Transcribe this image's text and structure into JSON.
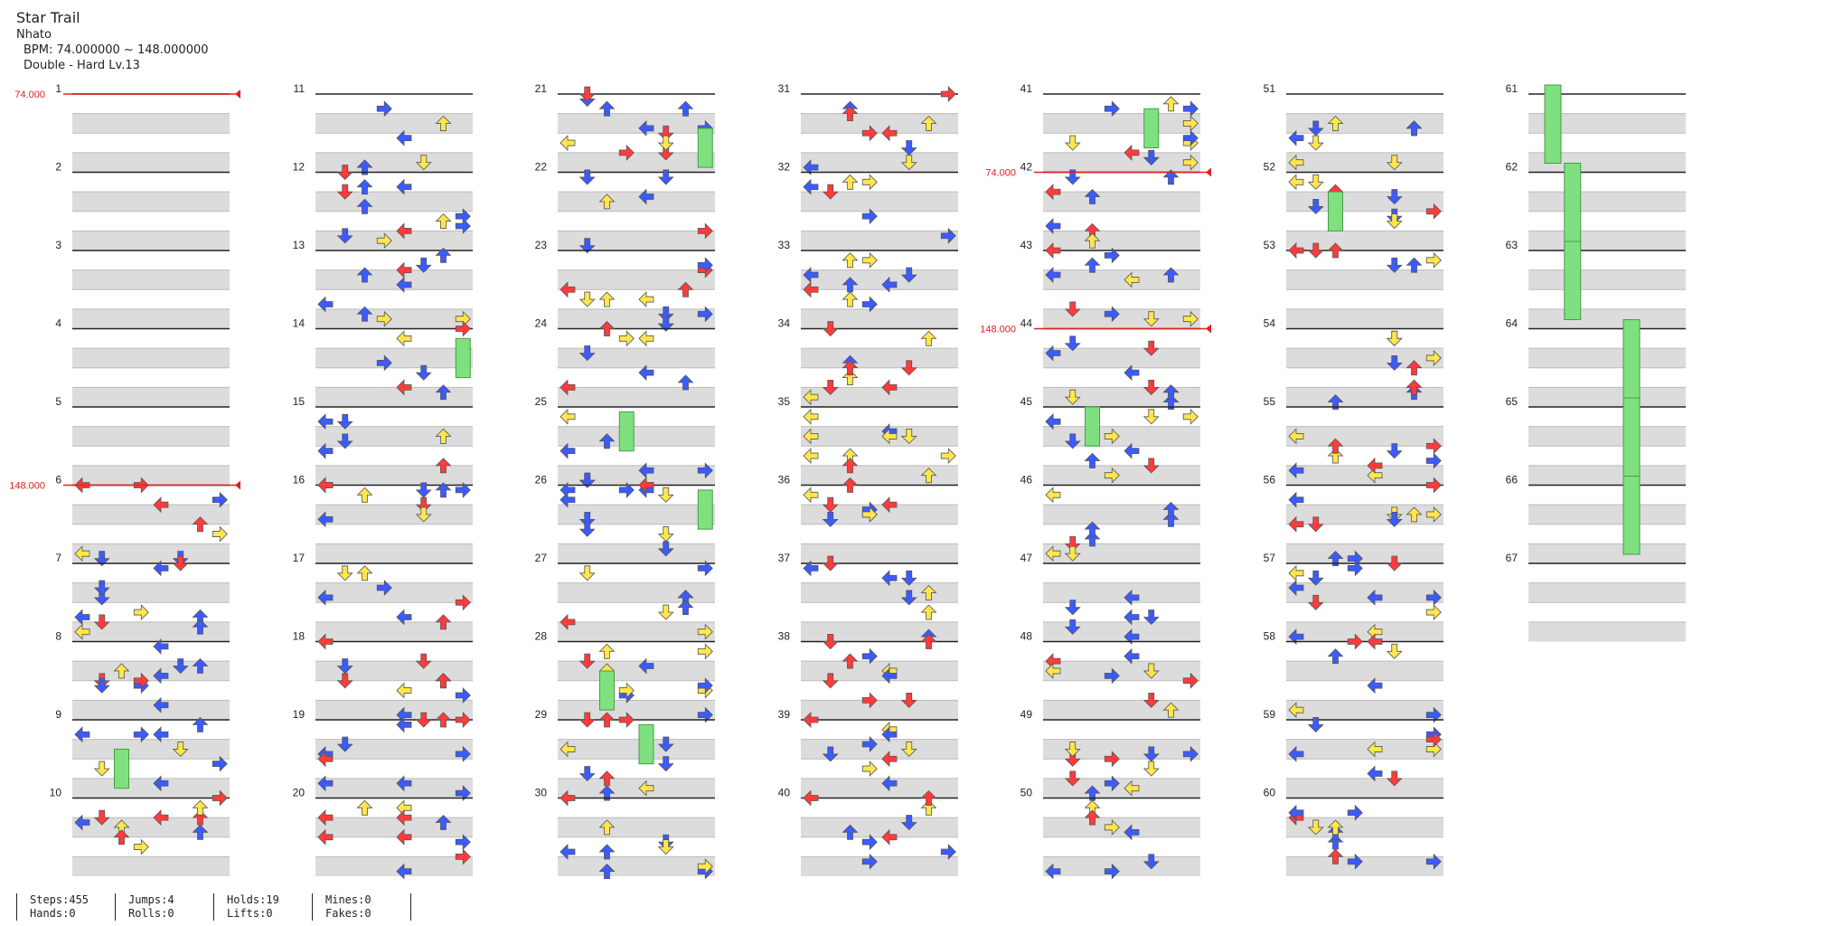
{
  "song": {
    "title": "Star Trail",
    "artist": "Nhato",
    "bpm_text": "BPM: 74.000000 ~ 148.000000",
    "difficulty": "Double - Hard Lv.13"
  },
  "measures": [
    "1",
    "2",
    "3",
    "4",
    "5",
    "6",
    "7",
    "8",
    "9",
    "10",
    "11",
    "12",
    "13",
    "14",
    "15",
    "16",
    "17",
    "18",
    "19",
    "20",
    "21",
    "22",
    "23",
    "24",
    "25",
    "26",
    "27",
    "28",
    "29",
    "30",
    "31",
    "32",
    "33",
    "34",
    "35",
    "36",
    "37",
    "38",
    "39",
    "40",
    "41",
    "42",
    "43",
    "44",
    "45",
    "46",
    "47",
    "48",
    "49",
    "50",
    "51",
    "52",
    "53",
    "54",
    "55",
    "56",
    "57",
    "58",
    "59",
    "60",
    "61",
    "62",
    "63",
    "64",
    "65",
    "66",
    "67"
  ],
  "bpm_changes": [
    {
      "label": "74.000",
      "measure": 1
    },
    {
      "label": "148.000",
      "measure": 6
    },
    {
      "label": "74.000",
      "measure": 42
    },
    {
      "label": "148.000",
      "measure": 44
    }
  ],
  "stats": [
    {
      "a": "Steps:455",
      "b": "Hands:0"
    },
    {
      "a": "Jumps:4",
      "b": "Rolls:0"
    },
    {
      "a": "Holds:19",
      "b": "Lifts:0"
    },
    {
      "a": "Mines:0",
      "b": "Fakes:0"
    }
  ],
  "colors": {
    "left": "#3b5bff",
    "down": "#3b5bff",
    "up": "#ff3b3b",
    "right": "#ff3b3b",
    "quarter": "#ff3b3b",
    "eighth": "#3b5bff",
    "sixteenth": "#ffe64d",
    "special": "#b04dff",
    "hold": "#7fe07f",
    "bpm_line": "#e02020"
  }
}
